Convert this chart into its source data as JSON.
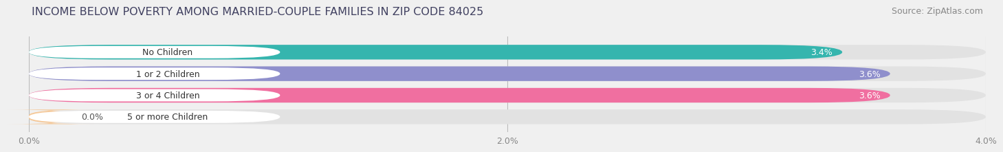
{
  "title": "INCOME BELOW POVERTY AMONG MARRIED-COUPLE FAMILIES IN ZIP CODE 84025",
  "source": "Source: ZipAtlas.com",
  "categories": [
    "No Children",
    "1 or 2 Children",
    "3 or 4 Children",
    "5 or more Children"
  ],
  "values": [
    3.4,
    3.6,
    3.6,
    0.0
  ],
  "bar_colors": [
    "#35b5ae",
    "#8f8fcc",
    "#f06fa0",
    "#f5c99a"
  ],
  "xlim": [
    0,
    4.0
  ],
  "xticks": [
    0.0,
    2.0,
    4.0
  ],
  "xtick_labels": [
    "0.0%",
    "2.0%",
    "4.0%"
  ],
  "background_color": "#f0f0f0",
  "bar_background_color": "#e2e2e2",
  "title_color": "#404060",
  "source_color": "#888888",
  "title_fontsize": 11.5,
  "source_fontsize": 9,
  "bar_height": 0.68,
  "bar_gap": 0.32,
  "label_fontsize": 9,
  "value_fontsize": 9
}
